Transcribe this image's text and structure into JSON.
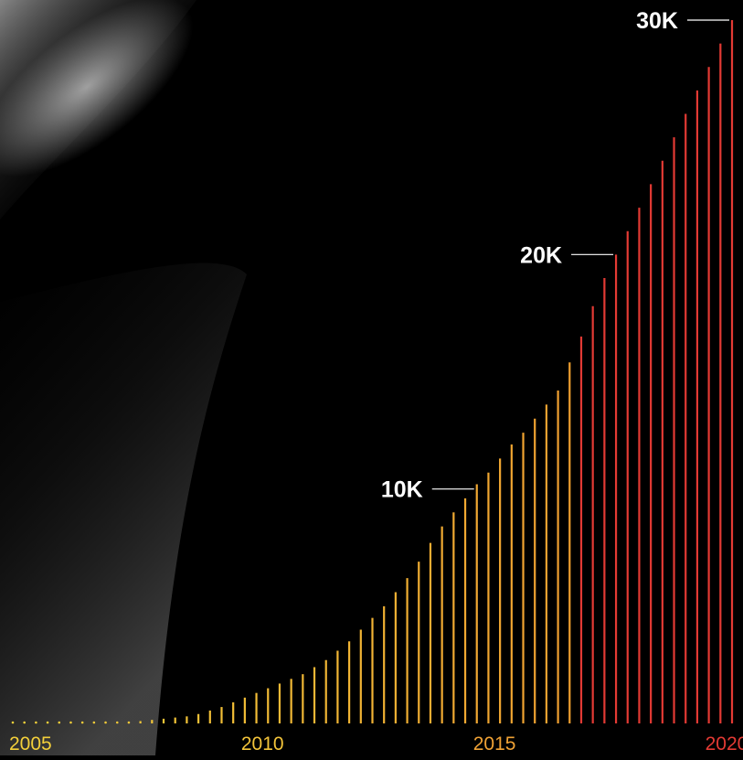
{
  "chart_data": {
    "type": "bar",
    "title": "",
    "xlabel": "",
    "ylabel": "",
    "x_unit": "quarter",
    "x_ticks": [
      {
        "label": "2005",
        "color": "#f3cf3a"
      },
      {
        "label": "2010",
        "color": "#f3c43a"
      },
      {
        "label": "2015",
        "color": "#f0a235"
      },
      {
        "label": "2020",
        "color": "#e33a34"
      }
    ],
    "y_annotations": [
      {
        "label": "10K",
        "value": 10000
      },
      {
        "label": "20K",
        "value": 20000
      },
      {
        "label": "30K",
        "value": 30000
      }
    ],
    "ylim": [
      0,
      30000
    ],
    "grid": false,
    "legend": "none",
    "colors": {
      "early": "#f3d23a",
      "mid": "#f0a030",
      "late": "#e33a34",
      "annotation": "#ffffff",
      "background": "#000000"
    },
    "series": [
      {
        "values": [
          0,
          0,
          0,
          0,
          0,
          0,
          0,
          0,
          0,
          0,
          0,
          100,
          150,
          200,
          250,
          300,
          400,
          550,
          700,
          900,
          1100,
          1300,
          1500,
          1700,
          1900,
          2100,
          2400,
          2700,
          3100,
          3500,
          4000,
          4500,
          5000,
          5600,
          6200,
          6900,
          7700,
          8400,
          9000,
          9600,
          10200,
          10700,
          11300,
          11900,
          12400,
          13000,
          13600,
          14200,
          15400,
          16500,
          17800,
          19000,
          20000,
          21000,
          22000,
          23000,
          24000,
          25000,
          26000,
          27000,
          28000,
          29000,
          30000
        ]
      }
    ]
  }
}
